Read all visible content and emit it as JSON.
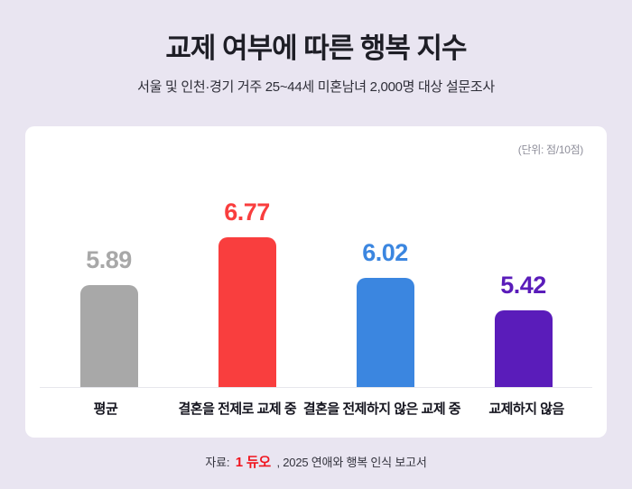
{
  "page": {
    "title": "교제 여부에 따른 행복 지수",
    "subtitle": "서울 및 인천·경기 거주 25~44세 미혼남녀 2,000명 대상 설문조사",
    "unit_note": "(단위: 점/10점)",
    "source_prefix": "자료:",
    "source_logo": "1 듀오",
    "source_suffix": ", 2025 연애와 행복 인식 보고서"
  },
  "colors": {
    "background": "#e9e5f1",
    "card": "#ffffff",
    "title_text": "#1e1e26",
    "unit_note_text": "#8f8f9b",
    "baseline": "#e7e7ec",
    "bar_gray": "#a8a8a8",
    "bar_red": "#f93e3e",
    "bar_blue": "#3b86e0",
    "bar_purple": "#5a1cba",
    "logo_red": "#f0141e"
  },
  "chart_data": {
    "type": "bar",
    "title": "교제 여부에 따른 행복 지수",
    "subtitle": "서울 및 인천·경기 거주 25~44세 미혼남녀 2,000명 대상 설문조사",
    "unit": "점/10점",
    "categories": [
      "평균",
      "결혼을 전제로 교제 중",
      "결혼을 전제하지 않은 교제 중",
      "교제하지 않음"
    ],
    "values": [
      5.89,
      6.77,
      6.02,
      5.42
    ],
    "colors": [
      "#a8a8a8",
      "#f93e3e",
      "#3b86e0",
      "#5a1cba"
    ],
    "value_labels": true,
    "grid": false,
    "xlabel": "",
    "ylabel": "",
    "ylim": [
      4.0,
      7.2
    ],
    "source": "자료: 듀오, 2025 연애와 행복 인식 보고서"
  }
}
